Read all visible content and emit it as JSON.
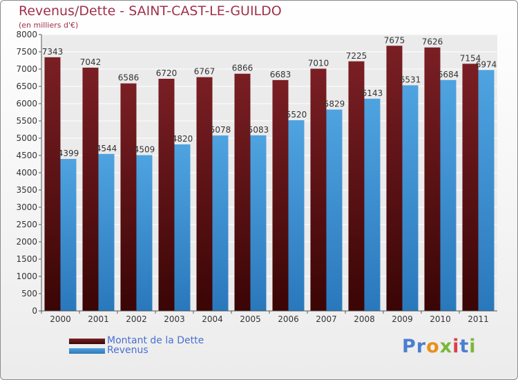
{
  "title": "Revenus/Dette - SAINT-CAST-LE-GUILDO",
  "subtitle": "(en milliers d'€)",
  "logo": "Proxiti",
  "chart_data": {
    "type": "bar",
    "categories": [
      "2000",
      "2001",
      "2002",
      "2003",
      "2004",
      "2005",
      "2006",
      "2007",
      "2008",
      "2009",
      "2010",
      "2011"
    ],
    "series": [
      {
        "name": "Montant de la Dette",
        "color": "#7a1f24",
        "values": [
          7343,
          7042,
          6586,
          6720,
          6767,
          6866,
          6683,
          7010,
          7225,
          7675,
          7626,
          7154
        ],
        "labels": [
          "7343",
          "7042",
          "6586",
          "6720",
          "6767",
          "6866",
          "6683",
          "7010",
          "7225",
          "7675",
          "7626",
          "7154"
        ]
      },
      {
        "name": "Revenus",
        "color": "#4fa3e0",
        "values": [
          4399,
          4544,
          4509,
          4820,
          5078,
          5083,
          5520,
          5829,
          6143,
          6531,
          6684,
          6974
        ],
        "labels": [
          "4399",
          "4544",
          "4509",
          "4820",
          "5078",
          "5083",
          "5520",
          "5829",
          "6143",
          "6531",
          "6684",
          "6974"
        ]
      }
    ],
    "ylim": [
      0,
      8000
    ],
    "yticks": [
      "0",
      "500",
      "1000",
      "1500",
      "2000",
      "2500",
      "3000",
      "3500",
      "4000",
      "4500",
      "5000",
      "5500",
      "6000",
      "6500",
      "7000",
      "7500",
      "8000"
    ],
    "grid": true,
    "legend_position": "bottom-left"
  }
}
